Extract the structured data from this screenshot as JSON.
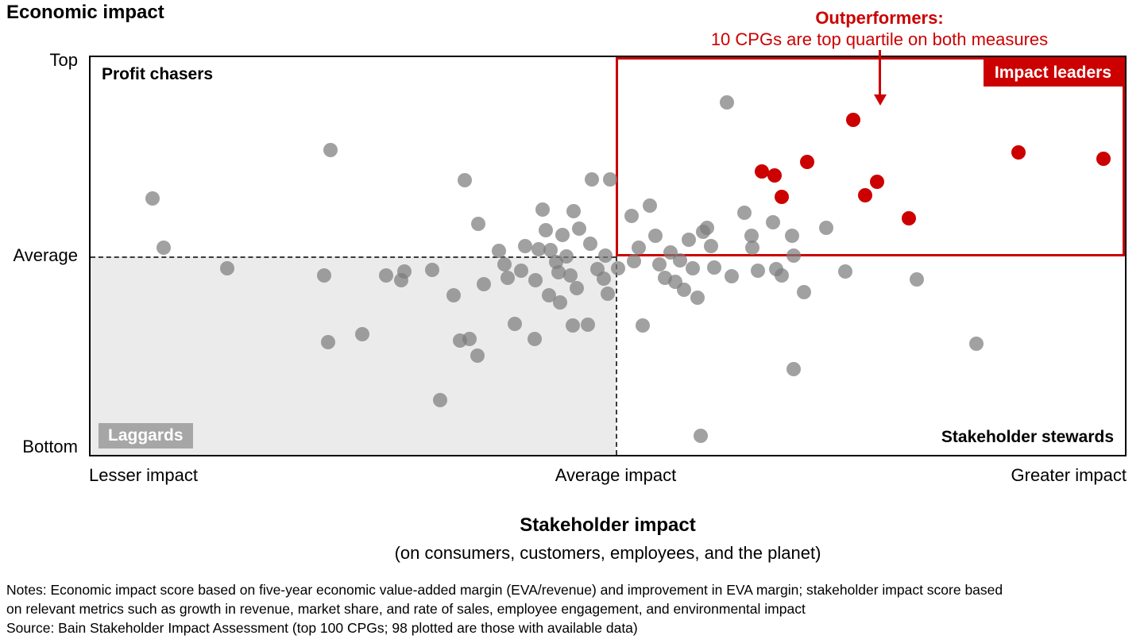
{
  "footnotes": {
    "notes_line1": "Notes: Economic impact score based on five-year economic value-added margin (EVA/revenue) and improvement in EVA margin; stakeholder impact score based",
    "notes_line2": "on relevant metrics such as growth in revenue, market share, and rate of sales, employee engagement, and environmental impact",
    "source": "Source: Bain Stakeholder Impact Assessment (top 100 CPGs; 98 plotted are those with available data)"
  },
  "colors": {
    "red": "#cc0000",
    "gray_dot": "rgba(125,125,125,0.72)",
    "quadrant_shade": "#ebebeb",
    "laggards_chip": "#a6a6a6"
  },
  "chart_data": {
    "type": "scatter",
    "title": "Economic impact",
    "x_title": "Stakeholder impact",
    "x_subtitle": "(on consumers, customers, employees, and the planet)",
    "x_ticks": [
      "Lesser impact",
      "Average impact",
      "Greater impact"
    ],
    "y_ticks": [
      "Top",
      "Average",
      "Bottom"
    ],
    "x_range": [
      0,
      100
    ],
    "y_range": [
      0,
      100
    ],
    "average_x": 50.8,
    "average_y": 50,
    "grid": false,
    "quadrant_labels": {
      "top_left": "Profit chasers",
      "top_right": "Impact leaders",
      "bottom_left": "Laggards",
      "bottom_right": "Stakeholder stewards"
    },
    "annotation": {
      "heading": "Outperformers:",
      "text": "10 CPGs are top quartile on both measures"
    },
    "series": [
      {
        "name": "CPGs (top 100; 98 plotted)",
        "dot_name": "cpg-dot",
        "color": "rgba(125,125,125,0.72)",
        "z": 3,
        "points": [
          [
            6,
            64.4
          ],
          [
            7.1,
            52.1
          ],
          [
            13.2,
            46.9
          ],
          [
            23.2,
            76.6
          ],
          [
            22.6,
            45.1
          ],
          [
            23,
            28.3
          ],
          [
            26.3,
            30.3
          ],
          [
            28.6,
            45.1
          ],
          [
            30.3,
            46.1
          ],
          [
            33.8,
            13.7
          ],
          [
            35.1,
            40.2
          ],
          [
            35.7,
            28.7
          ],
          [
            36.2,
            69.1
          ],
          [
            36.6,
            29.1
          ],
          [
            37.4,
            25
          ],
          [
            37.5,
            58
          ],
          [
            39.5,
            51.3
          ],
          [
            40.3,
            44.6
          ],
          [
            41.6,
            46.3
          ],
          [
            42,
            52.5
          ],
          [
            42.9,
            29.1
          ],
          [
            43.3,
            51.7
          ],
          [
            43.7,
            61.6
          ],
          [
            44.3,
            40.2
          ],
          [
            44.5,
            51.5
          ],
          [
            45,
            48.5
          ],
          [
            45.4,
            38.4
          ],
          [
            45.6,
            55.2
          ],
          [
            46.4,
            45.1
          ],
          [
            46.6,
            32.5
          ],
          [
            46.7,
            61.2
          ],
          [
            47.2,
            56.8
          ],
          [
            48.1,
            32.7
          ],
          [
            48.5,
            69.3
          ],
          [
            49,
            46.7
          ],
          [
            49.6,
            44.4
          ],
          [
            49.8,
            50.1
          ],
          [
            50.2,
            69.3
          ],
          [
            52.3,
            60
          ],
          [
            52.5,
            48.7
          ],
          [
            53.4,
            32.5
          ],
          [
            54.1,
            62.6
          ],
          [
            54.6,
            55
          ],
          [
            55,
            47.9
          ],
          [
            56.1,
            50.9
          ],
          [
            56.5,
            43.6
          ],
          [
            57.4,
            41.6
          ],
          [
            57.8,
            54.1
          ],
          [
            58.2,
            46.9
          ],
          [
            58.7,
            39.6
          ],
          [
            59,
            4.8
          ],
          [
            59.2,
            56
          ],
          [
            59.6,
            57
          ],
          [
            60.3,
            47.1
          ],
          [
            61.5,
            88.7
          ],
          [
            63.2,
            60.8
          ],
          [
            63.9,
            55
          ],
          [
            64.5,
            46.3
          ],
          [
            66.3,
            46.7
          ],
          [
            66.8,
            45.1
          ],
          [
            67.8,
            55
          ],
          [
            68,
            50.1
          ],
          [
            68,
            21.6
          ],
          [
            69,
            41
          ],
          [
            71.1,
            57
          ],
          [
            73,
            46.1
          ],
          [
            79.9,
            44.2
          ],
          [
            85.6,
            27.9
          ],
          [
            30,
            44
          ],
          [
            33,
            46.5
          ],
          [
            38,
            43
          ],
          [
            40,
            48
          ],
          [
            41,
            33
          ],
          [
            43,
            44
          ],
          [
            44,
            56.5
          ],
          [
            45.2,
            46
          ],
          [
            46,
            50
          ],
          [
            47,
            42
          ],
          [
            48.3,
            53
          ],
          [
            50,
            40.5
          ],
          [
            51,
            47
          ],
          [
            53,
            52
          ],
          [
            55.5,
            44.5
          ],
          [
            57,
            49
          ],
          [
            60,
            52.5
          ],
          [
            62,
            45
          ],
          [
            64,
            52
          ],
          [
            66,
            58.5
          ]
        ]
      },
      {
        "name": "Outperformers (top quartile on both measures)",
        "dot_name": "outperformer-dot",
        "color": "#cc0000",
        "z": 4,
        "points": [
          [
            64.9,
            71.3
          ],
          [
            66.1,
            70.3
          ],
          [
            66.8,
            64.8
          ],
          [
            69.3,
            73.7
          ],
          [
            73.7,
            84.2
          ],
          [
            74.9,
            65.3
          ],
          [
            76,
            68.7
          ],
          [
            79.1,
            59.4
          ],
          [
            89.7,
            76
          ],
          [
            97.9,
            74.5
          ]
        ]
      }
    ]
  }
}
